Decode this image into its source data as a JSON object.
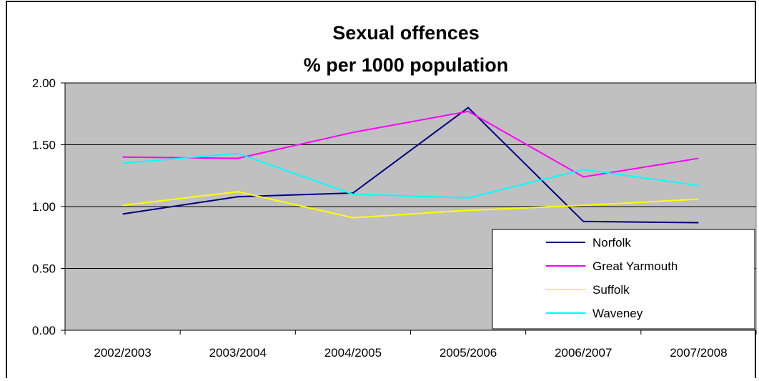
{
  "chart_data": {
    "type": "line",
    "title": [
      "Sexual offences",
      "% per 1000 population"
    ],
    "categories": [
      "2002/2003",
      "2003/2004",
      "2004/2005",
      "2005/2006",
      "2006/2007",
      "2007/2008"
    ],
    "ylim": [
      0,
      2
    ],
    "yticks": [
      "0.00",
      "0.50",
      "1.00",
      "1.50",
      "2.00"
    ],
    "ytick_values": [
      0,
      0.5,
      1,
      1.5,
      2
    ],
    "grid": true,
    "plot_background": "#c0c0c0",
    "legend_position": "bottom-right",
    "series": [
      {
        "name": "Norfolk",
        "color": "#000080",
        "values": [
          0.94,
          1.08,
          1.11,
          1.8,
          0.88,
          0.87
        ]
      },
      {
        "name": "Great Yarmouth",
        "color": "#ff00ff",
        "values": [
          1.4,
          1.39,
          1.6,
          1.77,
          1.24,
          1.39
        ]
      },
      {
        "name": "Suffolk",
        "color": "#ffff00",
        "values": [
          1.01,
          1.12,
          0.91,
          0.97,
          1.01,
          1.06
        ]
      },
      {
        "name": "Waveney",
        "color": "#00ffff",
        "values": [
          1.35,
          1.43,
          1.1,
          1.07,
          1.3,
          1.17
        ]
      }
    ]
  }
}
